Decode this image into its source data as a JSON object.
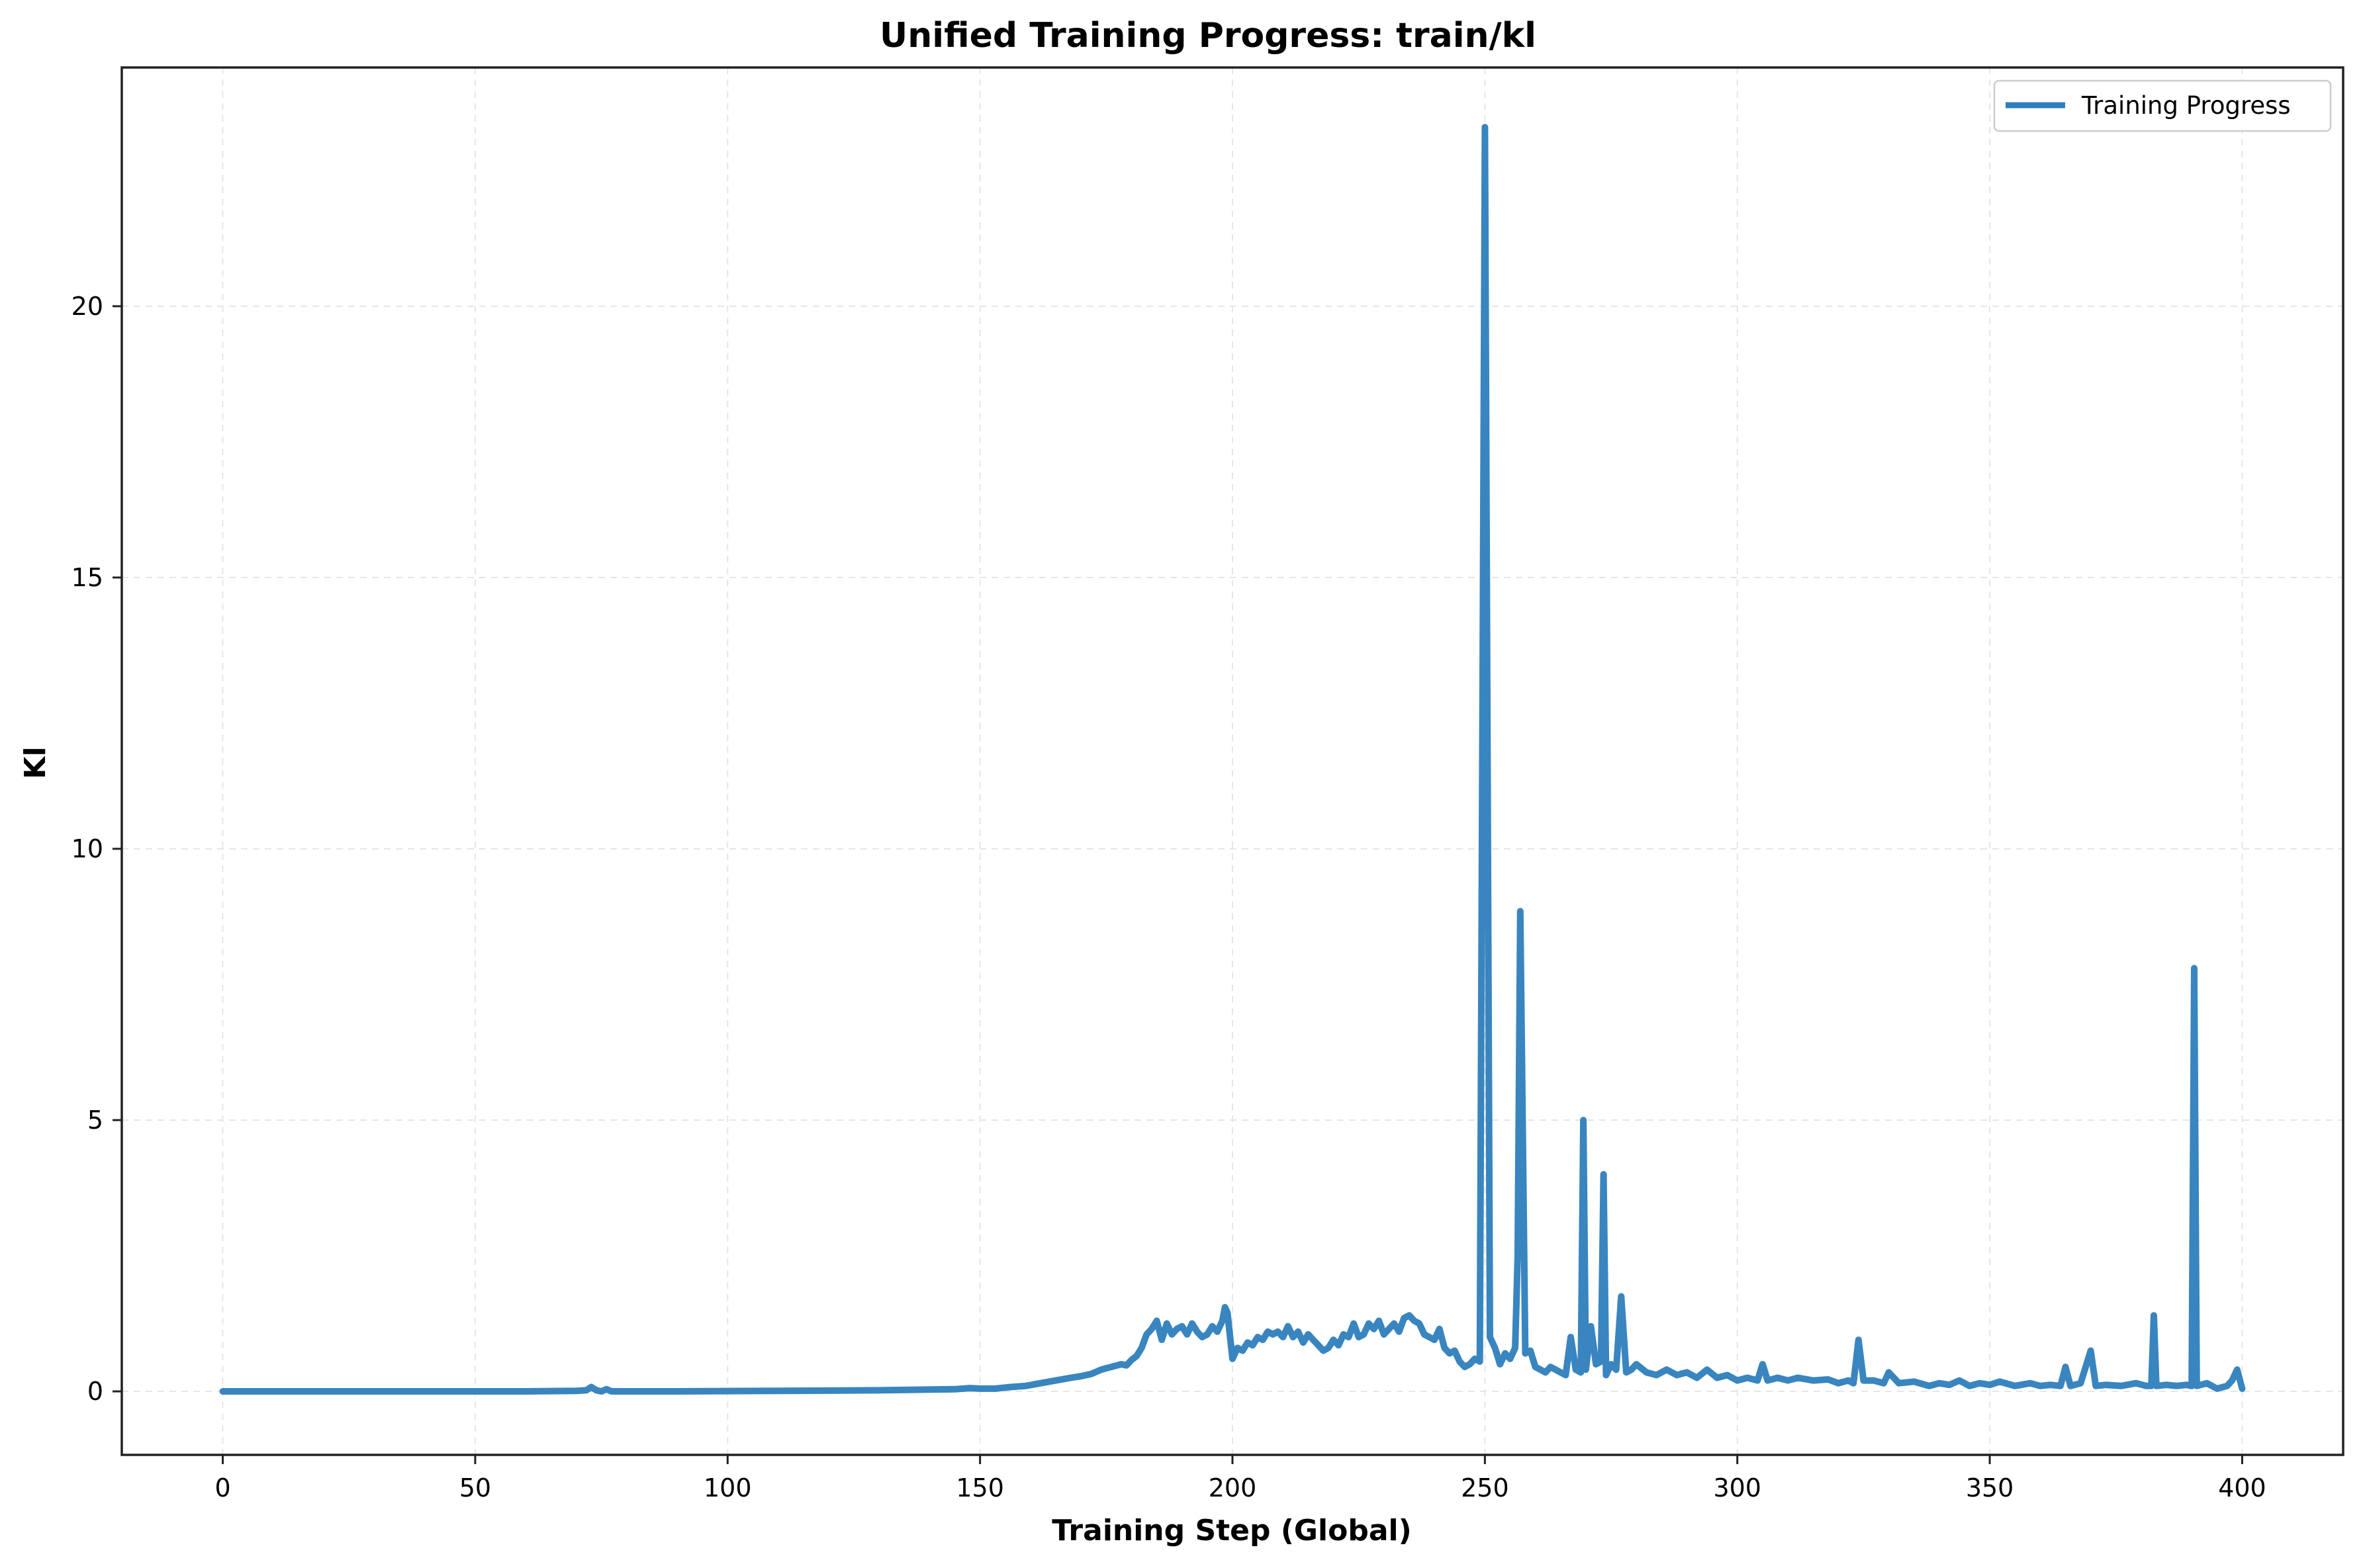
{
  "chart_data": {
    "type": "line",
    "title": "Unified Training Progress: train/kl",
    "xlabel": "Training Step (Global)",
    "ylabel": "Kl",
    "xlim": [
      -20,
      420
    ],
    "ylim": [
      -1.17,
      24.4
    ],
    "x_ticks": [
      0,
      50,
      100,
      150,
      200,
      250,
      300,
      350,
      400
    ],
    "y_ticks": [
      0,
      5,
      10,
      15,
      20
    ],
    "grid": true,
    "legend_position": "upper-right",
    "series": [
      {
        "name": "Training Progress",
        "color": "#2e7ebc",
        "points": [
          [
            0,
            0.0
          ],
          [
            20,
            0.0
          ],
          [
            40,
            0.0
          ],
          [
            60,
            0.0
          ],
          [
            70,
            0.01
          ],
          [
            72,
            0.02
          ],
          [
            73,
            0.08
          ],
          [
            74,
            0.02
          ],
          [
            75,
            0.0
          ],
          [
            76,
            0.04
          ],
          [
            77,
            0.0
          ],
          [
            90,
            0.0
          ],
          [
            110,
            0.01
          ],
          [
            130,
            0.02
          ],
          [
            145,
            0.04
          ],
          [
            148,
            0.06
          ],
          [
            150,
            0.05
          ],
          [
            153,
            0.05
          ],
          [
            156,
            0.08
          ],
          [
            159,
            0.1
          ],
          [
            162,
            0.15
          ],
          [
            165,
            0.2
          ],
          [
            168,
            0.25
          ],
          [
            170,
            0.28
          ],
          [
            172,
            0.32
          ],
          [
            174,
            0.4
          ],
          [
            176,
            0.45
          ],
          [
            178,
            0.5
          ],
          [
            179,
            0.48
          ],
          [
            180,
            0.58
          ],
          [
            181,
            0.65
          ],
          [
            182,
            0.8
          ],
          [
            183,
            1.05
          ],
          [
            184,
            1.15
          ],
          [
            185,
            1.3
          ],
          [
            186,
            0.95
          ],
          [
            187,
            1.25
          ],
          [
            188,
            1.05
          ],
          [
            189,
            1.15
          ],
          [
            190,
            1.2
          ],
          [
            191,
            1.05
          ],
          [
            192,
            1.25
          ],
          [
            193,
            1.1
          ],
          [
            194,
            1.0
          ],
          [
            195,
            1.05
          ],
          [
            196,
            1.2
          ],
          [
            197,
            1.1
          ],
          [
            198,
            1.3
          ],
          [
            198.5,
            1.55
          ],
          [
            199,
            1.45
          ],
          [
            200,
            0.6
          ],
          [
            201,
            0.8
          ],
          [
            202,
            0.75
          ],
          [
            203,
            0.9
          ],
          [
            204,
            0.85
          ],
          [
            205,
            1.0
          ],
          [
            206,
            0.95
          ],
          [
            207,
            1.1
          ],
          [
            208,
            1.05
          ],
          [
            209,
            1.1
          ],
          [
            210,
            1.0
          ],
          [
            211,
            1.2
          ],
          [
            212,
            1.0
          ],
          [
            213,
            1.1
          ],
          [
            214,
            0.9
          ],
          [
            215,
            1.05
          ],
          [
            216,
            0.95
          ],
          [
            217,
            0.85
          ],
          [
            218,
            0.75
          ],
          [
            219,
            0.8
          ],
          [
            220,
            0.95
          ],
          [
            221,
            0.85
          ],
          [
            222,
            1.05
          ],
          [
            223,
            1.0
          ],
          [
            224,
            1.25
          ],
          [
            225,
            1.0
          ],
          [
            226,
            1.05
          ],
          [
            227,
            1.25
          ],
          [
            228,
            1.15
          ],
          [
            229,
            1.3
          ],
          [
            230,
            1.05
          ],
          [
            231,
            1.15
          ],
          [
            232,
            1.25
          ],
          [
            233,
            1.1
          ],
          [
            234,
            1.35
          ],
          [
            235,
            1.4
          ],
          [
            236,
            1.3
          ],
          [
            237,
            1.25
          ],
          [
            238,
            1.05
          ],
          [
            239,
            1.0
          ],
          [
            240,
            0.95
          ],
          [
            241,
            1.15
          ],
          [
            242,
            0.8
          ],
          [
            243,
            0.7
          ],
          [
            244,
            0.75
          ],
          [
            245,
            0.55
          ],
          [
            246,
            0.45
          ],
          [
            247,
            0.5
          ],
          [
            248,
            0.6
          ],
          [
            249,
            0.55
          ],
          [
            250,
            23.3
          ],
          [
            251,
            1.0
          ],
          [
            252,
            0.8
          ],
          [
            253,
            0.5
          ],
          [
            254,
            0.7
          ],
          [
            255,
            0.6
          ],
          [
            256,
            0.8
          ],
          [
            256.5,
            2.5
          ],
          [
            257,
            8.85
          ],
          [
            258,
            0.7
          ],
          [
            259,
            0.75
          ],
          [
            260,
            0.45
          ],
          [
            261,
            0.4
          ],
          [
            262,
            0.35
          ],
          [
            263,
            0.45
          ],
          [
            264,
            0.4
          ],
          [
            265,
            0.35
          ],
          [
            266,
            0.3
          ],
          [
            267,
            1.0
          ],
          [
            268,
            0.4
          ],
          [
            269,
            0.35
          ],
          [
            269.5,
            5.0
          ],
          [
            270,
            0.4
          ],
          [
            271,
            1.2
          ],
          [
            272,
            0.5
          ],
          [
            273,
            0.55
          ],
          [
            273.5,
            4.0
          ],
          [
            274,
            0.3
          ],
          [
            275,
            0.5
          ],
          [
            276,
            0.4
          ],
          [
            277,
            1.75
          ],
          [
            278,
            0.35
          ],
          [
            279,
            0.4
          ],
          [
            280,
            0.5
          ],
          [
            282,
            0.35
          ],
          [
            284,
            0.3
          ],
          [
            286,
            0.4
          ],
          [
            288,
            0.3
          ],
          [
            290,
            0.35
          ],
          [
            292,
            0.25
          ],
          [
            294,
            0.4
          ],
          [
            296,
            0.25
          ],
          [
            298,
            0.3
          ],
          [
            300,
            0.2
          ],
          [
            302,
            0.25
          ],
          [
            304,
            0.2
          ],
          [
            305,
            0.5
          ],
          [
            306,
            0.2
          ],
          [
            308,
            0.25
          ],
          [
            310,
            0.2
          ],
          [
            312,
            0.25
          ],
          [
            315,
            0.2
          ],
          [
            318,
            0.22
          ],
          [
            320,
            0.15
          ],
          [
            322,
            0.2
          ],
          [
            323,
            0.15
          ],
          [
            324,
            0.95
          ],
          [
            325,
            0.2
          ],
          [
            327,
            0.2
          ],
          [
            329,
            0.15
          ],
          [
            330,
            0.35
          ],
          [
            332,
            0.15
          ],
          [
            335,
            0.18
          ],
          [
            338,
            0.1
          ],
          [
            340,
            0.15
          ],
          [
            342,
            0.12
          ],
          [
            344,
            0.2
          ],
          [
            346,
            0.1
          ],
          [
            348,
            0.15
          ],
          [
            350,
            0.12
          ],
          [
            352,
            0.18
          ],
          [
            355,
            0.1
          ],
          [
            358,
            0.15
          ],
          [
            360,
            0.1
          ],
          [
            362,
            0.12
          ],
          [
            364,
            0.1
          ],
          [
            365,
            0.45
          ],
          [
            366,
            0.1
          ],
          [
            368,
            0.15
          ],
          [
            370,
            0.75
          ],
          [
            371,
            0.1
          ],
          [
            373,
            0.12
          ],
          [
            376,
            0.1
          ],
          [
            379,
            0.15
          ],
          [
            381,
            0.1
          ],
          [
            382,
            0.1
          ],
          [
            382.5,
            1.4
          ],
          [
            383,
            0.1
          ],
          [
            385,
            0.12
          ],
          [
            387,
            0.1
          ],
          [
            389,
            0.12
          ],
          [
            390,
            0.1
          ],
          [
            390.5,
            7.8
          ],
          [
            391,
            0.1
          ],
          [
            393,
            0.15
          ],
          [
            395,
            0.05
          ],
          [
            397,
            0.1
          ],
          [
            398,
            0.2
          ],
          [
            399,
            0.4
          ],
          [
            400,
            0.05
          ]
        ]
      }
    ]
  }
}
